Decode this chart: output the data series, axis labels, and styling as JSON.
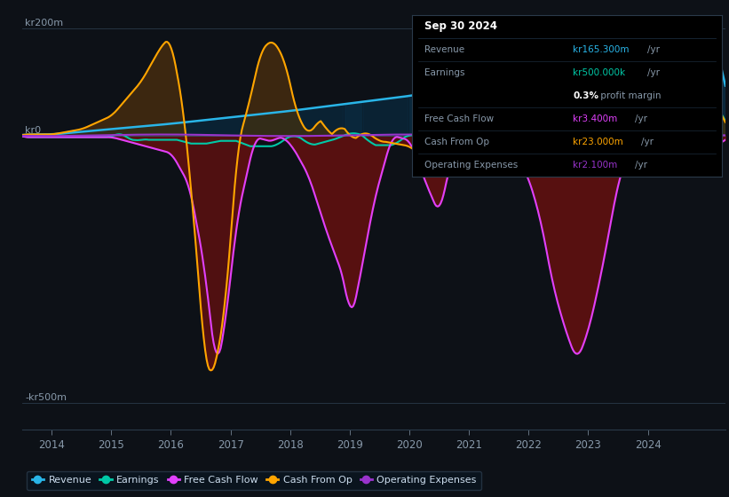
{
  "bg_color": "#0d1117",
  "plot_bg_color": "#131a25",
  "y_label_200": "kr200m",
  "y_label_0": "kr0",
  "y_label_neg500": "-kr500m",
  "x_ticks": [
    2014,
    2015,
    2016,
    2017,
    2018,
    2019,
    2020,
    2021,
    2022,
    2023,
    2024
  ],
  "ylim": [
    -550,
    230
  ],
  "xlim_start": 2013.5,
  "xlim_end": 2025.3,
  "colors": {
    "revenue": "#29b5e8",
    "earnings": "#00c9a7",
    "free_cash_flow": "#e040fb",
    "cash_from_op": "#ffa500",
    "operating_expenses": "#9933cc"
  },
  "fill_dark_red": "#5c1a1a",
  "fill_teal_pos": "#0d3d3a",
  "fill_blue_pos": "#0d2a3d",
  "fill_cashop_pos": "#3d3010",
  "info_box": {
    "date": "Sep 30 2024",
    "revenue_label": "Revenue",
    "revenue_val": "kr165.300m",
    "revenue_suffix": " /yr",
    "revenue_color": "#29b5e8",
    "earnings_label": "Earnings",
    "earnings_val": "kr500.000k",
    "earnings_suffix": " /yr",
    "earnings_color": "#00c9a7",
    "profit_text": "0.3%",
    "profit_suffix": " profit margin",
    "fcf_label": "Free Cash Flow",
    "fcf_val": "kr3.400m",
    "fcf_suffix": " /yr",
    "fcf_color": "#e040fb",
    "cashop_label": "Cash From Op",
    "cashop_val": "kr23.000m",
    "cashop_suffix": " /yr",
    "cashop_color": "#ffa500",
    "opex_label": "Operating Expenses",
    "opex_val": "kr2.100m",
    "opex_suffix": " /yr",
    "opex_color": "#9933cc"
  },
  "legend": [
    {
      "label": "Revenue",
      "color": "#29b5e8"
    },
    {
      "label": "Earnings",
      "color": "#00c9a7"
    },
    {
      "label": "Free Cash Flow",
      "color": "#e040fb"
    },
    {
      "label": "Cash From Op",
      "color": "#ffa500"
    },
    {
      "label": "Operating Expenses",
      "color": "#9933cc"
    }
  ]
}
